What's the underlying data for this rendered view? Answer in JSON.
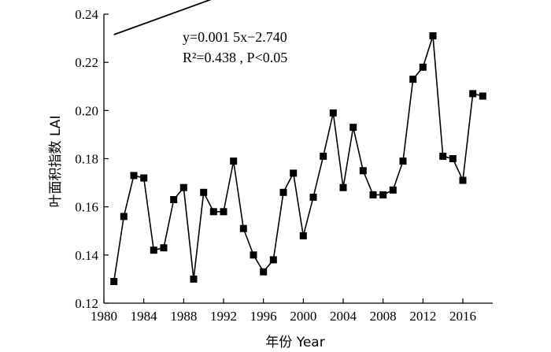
{
  "chart_data": {
    "type": "line",
    "xlabel": "年份 Year",
    "ylabel": "叶面积指数 LAI",
    "xlim": [
      1980,
      2019
    ],
    "ylim": [
      0.12,
      0.24
    ],
    "xticks": [
      1980,
      1984,
      1988,
      1992,
      1996,
      2000,
      2004,
      2008,
      2012,
      2016
    ],
    "yticks": [
      0.12,
      0.14,
      0.16,
      0.18,
      0.2,
      0.22,
      0.24
    ],
    "ytick_labels": [
      "0.12",
      "0.14",
      "0.16",
      "0.18",
      "0.20",
      "0.22",
      "0.24"
    ],
    "grid": false,
    "series": [
      {
        "marker": "square",
        "x": [
          1981,
          1982,
          1983,
          1984,
          1985,
          1986,
          1987,
          1988,
          1989,
          1990,
          1991,
          1992,
          1993,
          1994,
          1995,
          1996,
          1997,
          1998,
          1999,
          2000,
          2001,
          2002,
          2003,
          2004,
          2005,
          2006,
          2007,
          2008,
          2009,
          2010,
          2011,
          2012,
          2013,
          2014,
          2015,
          2016,
          2017,
          2018
        ],
        "y": [
          0.129,
          0.156,
          0.173,
          0.172,
          0.142,
          0.143,
          0.163,
          0.168,
          0.13,
          0.166,
          0.158,
          0.158,
          0.179,
          0.151,
          0.14,
          0.133,
          0.138,
          0.166,
          0.174,
          0.148,
          0.164,
          0.181,
          0.199,
          0.168,
          0.193,
          0.175,
          0.165,
          0.165,
          0.167,
          0.179,
          0.213,
          0.218,
          0.231,
          0.181,
          0.18,
          0.171,
          0.207,
          0.206
        ]
      }
    ],
    "trend": {
      "slope": 0.0015,
      "intercept": -2.74,
      "x_range": [
        1981,
        2018
      ]
    },
    "annotations": {
      "equation": "y=0.001 5x−2.740",
      "stats": "R²=0.438 , P<0.05"
    }
  }
}
